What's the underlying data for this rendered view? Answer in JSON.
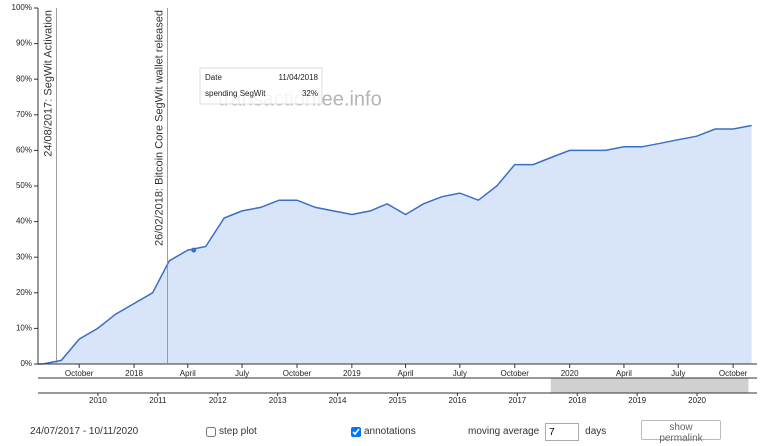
{
  "chart_data": {
    "type": "area",
    "watermark": "transactionfee.info",
    "x": [
      "2017-08",
      "2017-09",
      "2017-10",
      "2017-11",
      "2017-12",
      "2018-01",
      "2018-02",
      "2018-03",
      "2018-04",
      "2018-05",
      "2018-06",
      "2018-07",
      "2018-08",
      "2018-09",
      "2018-10",
      "2018-11",
      "2018-12",
      "2019-01",
      "2019-02",
      "2019-03",
      "2019-04",
      "2019-05",
      "2019-06",
      "2019-07",
      "2019-08",
      "2019-09",
      "2019-10",
      "2019-11",
      "2019-12",
      "2020-01",
      "2020-02",
      "2020-03",
      "2020-04",
      "2020-05",
      "2020-06",
      "2020-07",
      "2020-08",
      "2020-09",
      "2020-10",
      "2020-11"
    ],
    "series": [
      {
        "name": "spending SegWit",
        "color": "#3a6fc6",
        "fill": "#d8e4f7",
        "values": [
          0,
          1,
          7,
          10,
          14,
          17,
          20,
          29,
          32,
          33,
          41,
          43,
          44,
          46,
          46,
          44,
          43,
          42,
          43,
          45,
          42,
          45,
          47,
          48,
          46,
          50,
          56,
          56,
          58,
          60,
          60,
          60,
          61,
          61,
          62,
          63,
          64,
          66,
          66,
          67
        ]
      }
    ],
    "xlim": [
      "2017-07-24",
      "2020-11-10"
    ],
    "xticks": [
      {
        "value": "2017-10",
        "label": "October"
      },
      {
        "value": "2018-01",
        "label": "2018"
      },
      {
        "value": "2018-04",
        "label": "April"
      },
      {
        "value": "2018-07",
        "label": "July"
      },
      {
        "value": "2018-10",
        "label": "October"
      },
      {
        "value": "2019-01",
        "label": "2019"
      },
      {
        "value": "2019-04",
        "label": "April"
      },
      {
        "value": "2019-07",
        "label": "July"
      },
      {
        "value": "2019-10",
        "label": "October"
      },
      {
        "value": "2020-01",
        "label": "2020"
      },
      {
        "value": "2020-04",
        "label": "April"
      },
      {
        "value": "2020-07",
        "label": "July"
      },
      {
        "value": "2020-10",
        "label": "October"
      }
    ],
    "ylim": [
      0,
      100
    ],
    "yticks": [
      {
        "value": 0,
        "label": "0%"
      },
      {
        "value": 10,
        "label": "10%"
      },
      {
        "value": 20,
        "label": "20%"
      },
      {
        "value": 30,
        "label": "30%"
      },
      {
        "value": 40,
        "label": "40%"
      },
      {
        "value": 50,
        "label": "50%"
      },
      {
        "value": 60,
        "label": "60%"
      },
      {
        "value": 70,
        "label": "70%"
      },
      {
        "value": 80,
        "label": "80%"
      },
      {
        "value": 90,
        "label": "90%"
      },
      {
        "value": 100,
        "label": "100%"
      }
    ],
    "annotations": [
      {
        "x": "2017-08-24",
        "text": "24/08/2017: SegWit Activation"
      },
      {
        "x": "2018-02-26",
        "text": "26/02/2018: Bitcoin Core SegWit wallet released"
      }
    ],
    "tooltip": {
      "date_label": "Date",
      "date": "11/04/2018",
      "value": {
        "value": 32,
        "label": "32%"
      }
    },
    "navigator": {
      "xlim": [
        2009,
        2021
      ],
      "xticks": [
        2010,
        2011,
        2012,
        2013,
        2014,
        2015,
        2016,
        2017,
        2018,
        2019,
        2020
      ]
    }
  },
  "controls": {
    "range": "24/07/2017 - 10/11/2020",
    "step_plot": {
      "label": "step plot",
      "checked": false
    },
    "annotations": {
      "label": "annotations",
      "checked": true
    },
    "moving_average": {
      "label": "moving average",
      "value": 7,
      "unit": "days"
    },
    "permalink": "show permalink"
  }
}
